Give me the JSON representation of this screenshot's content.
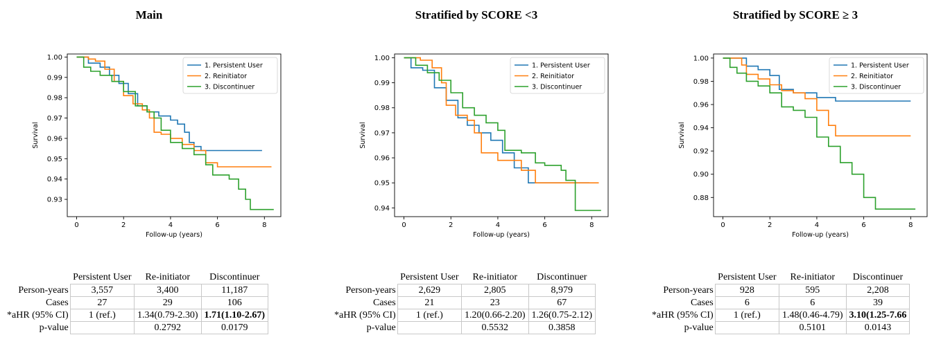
{
  "legend": [
    "1. Persistent User",
    "2. Reinitiator",
    "3. Discontinuer"
  ],
  "colors": [
    "#1f77b4",
    "#ff7f0e",
    "#2ca02c"
  ],
  "table_columns": [
    "Persistent User",
    "Re-initiator",
    "Discontinuer"
  ],
  "table_row_labels": [
    "Person-years",
    "Cases",
    "*aHR (95% CI)",
    "p-value"
  ],
  "panels": [
    {
      "title": "Main",
      "chart_data": {
        "type": "line",
        "xlabel": "Follow-up (years)",
        "ylabel": "Survival",
        "xlim": [
          -0.4,
          8.7
        ],
        "ylim": [
          0.9215,
          1.0015
        ],
        "xticks": [
          0,
          2,
          4,
          6,
          8
        ],
        "yticks": [
          0.93,
          0.94,
          0.95,
          0.96,
          0.97,
          0.98,
          0.99,
          1.0
        ],
        "legend_position": "top-right",
        "grid": false,
        "series": [
          {
            "name": "1. Persistent User",
            "x": [
              0,
              0.5,
              1,
              1.4,
              1.8,
              2.2,
              2.6,
              3.0,
              3.5,
              4.0,
              4.3,
              4.6,
              4.8,
              5.0,
              5.3,
              7.9
            ],
            "y": [
              1.0,
              0.997,
              0.995,
              0.991,
              0.987,
              0.982,
              0.976,
              0.973,
              0.971,
              0.969,
              0.967,
              0.963,
              0.958,
              0.956,
              0.954,
              0.954
            ]
          },
          {
            "name": "2. Reinitiator",
            "x": [
              0,
              0.5,
              0.8,
              1.2,
              1.6,
              2.0,
              2.4,
              2.8,
              3.1,
              3.3,
              3.6,
              4.0,
              4.5,
              5.0,
              5.5,
              6.0,
              8.3
            ],
            "y": [
              1.0,
              0.999,
              0.998,
              0.994,
              0.988,
              0.981,
              0.977,
              0.974,
              0.97,
              0.963,
              0.962,
              0.96,
              0.957,
              0.954,
              0.948,
              0.946,
              0.946
            ]
          },
          {
            "name": "3. Discontinuer",
            "x": [
              0,
              0.3,
              0.6,
              1.0,
              1.5,
              2.0,
              2.5,
              3.0,
              3.3,
              3.6,
              4.0,
              4.5,
              5.0,
              5.5,
              5.8,
              6.5,
              6.9,
              7.2,
              7.4,
              8.4
            ],
            "y": [
              1.0,
              0.995,
              0.993,
              0.991,
              0.988,
              0.983,
              0.976,
              0.973,
              0.97,
              0.964,
              0.958,
              0.955,
              0.952,
              0.947,
              0.942,
              0.94,
              0.935,
              0.93,
              0.925,
              0.925
            ]
          }
        ]
      },
      "table": [
        [
          "3,557",
          "3,400",
          "11,187"
        ],
        [
          "27",
          "29",
          "106"
        ],
        [
          "1 (ref.)",
          "1.34(0.79-2.30)",
          "1.71(1.10-2.67)"
        ],
        [
          "",
          "0.2792",
          "0.0179"
        ]
      ]
    },
    {
      "title": "Stratified by SCORE <3",
      "chart_data": {
        "type": "line",
        "xlabel": "Follow-up (years)",
        "ylabel": "Survival",
        "xlim": [
          -0.4,
          8.7
        ],
        "ylim": [
          0.9365,
          1.0015
        ],
        "xticks": [
          0,
          2,
          4,
          6,
          8
        ],
        "yticks": [
          0.94,
          0.95,
          0.96,
          0.97,
          0.98,
          0.99,
          1.0
        ],
        "legend_position": "top-right",
        "grid": false,
        "series": [
          {
            "name": "1. Persistent User",
            "x": [
              0,
              0.3,
              0.8,
              1.3,
              1.8,
              2.3,
              2.7,
              3.2,
              3.7,
              4.2,
              4.7,
              5.3,
              7.9
            ],
            "y": [
              1.0,
              0.996,
              0.995,
              0.988,
              0.983,
              0.976,
              0.973,
              0.97,
              0.967,
              0.962,
              0.956,
              0.95,
              0.95
            ]
          },
          {
            "name": "2. Reinitiator",
            "x": [
              0,
              0.7,
              1.2,
              1.6,
              1.8,
              2.2,
              2.7,
              3.0,
              3.3,
              4.0,
              5.0,
              5.6,
              8.3
            ],
            "y": [
              1.0,
              0.999,
              0.996,
              0.99,
              0.981,
              0.977,
              0.975,
              0.97,
              0.962,
              0.959,
              0.955,
              0.95,
              0.95
            ]
          },
          {
            "name": "3. Discontinuer",
            "x": [
              0,
              0.5,
              1.0,
              1.5,
              2.0,
              2.5,
              3.0,
              3.5,
              4.0,
              4.3,
              5.0,
              5.6,
              6.0,
              6.7,
              6.9,
              7.3,
              8.4
            ],
            "y": [
              1.0,
              0.997,
              0.994,
              0.991,
              0.986,
              0.98,
              0.977,
              0.974,
              0.971,
              0.963,
              0.962,
              0.958,
              0.957,
              0.955,
              0.951,
              0.939,
              0.939
            ]
          }
        ]
      },
      "table": [
        [
          "2,629",
          "2,805",
          "8,979"
        ],
        [
          "21",
          "23",
          "67"
        ],
        [
          "1 (ref.)",
          "1.20(0.66-2.20)",
          "1.26(0.75-2.12)"
        ],
        [
          "",
          "0.5532",
          "0.3858"
        ]
      ]
    },
    {
      "title": "Stratified by SCORE ≥ 3",
      "chart_data": {
        "type": "line",
        "xlabel": "Follow-up (years)",
        "ylabel": "Survival",
        "xlim": [
          -0.4,
          8.7
        ],
        "ylim": [
          0.8635,
          1.0035
        ],
        "xticks": [
          0,
          2,
          4,
          6,
          8
        ],
        "yticks": [
          0.88,
          0.9,
          0.92,
          0.94,
          0.96,
          0.98,
          1.0
        ],
        "legend_position": "top-right",
        "grid": false,
        "series": [
          {
            "name": "1. Persistent User",
            "x": [
              0,
              1.0,
              1.5,
              2.0,
              2.4,
              3.0,
              4.0,
              4.8,
              8.0
            ],
            "y": [
              1.0,
              0.993,
              0.99,
              0.985,
              0.973,
              0.97,
              0.966,
              0.963,
              0.963
            ]
          },
          {
            "name": "2. Reinitiator",
            "x": [
              0,
              0.8,
              1.0,
              1.5,
              2.0,
              2.5,
              3.0,
              3.5,
              4.0,
              4.5,
              4.8,
              8.0
            ],
            "y": [
              1.0,
              0.994,
              0.986,
              0.982,
              0.977,
              0.972,
              0.97,
              0.965,
              0.955,
              0.942,
              0.933,
              0.933
            ]
          },
          {
            "name": "3. Discontinuer",
            "x": [
              0,
              0.3,
              0.6,
              1.0,
              1.5,
              2.0,
              2.5,
              3.0,
              3.5,
              4.0,
              4.5,
              5.0,
              5.5,
              6.0,
              6.5,
              8.2
            ],
            "y": [
              1.0,
              0.992,
              0.987,
              0.98,
              0.976,
              0.97,
              0.958,
              0.955,
              0.949,
              0.932,
              0.924,
              0.91,
              0.9,
              0.88,
              0.87,
              0.87
            ]
          }
        ]
      },
      "table": [
        [
          "928",
          "595",
          "2,208"
        ],
        [
          "6",
          "6",
          "39"
        ],
        [
          "1 (ref.)",
          "1.48(0.46-4.79)",
          "3.10(1.25-7.66"
        ],
        [
          "",
          "0.5101",
          "0.0143"
        ]
      ]
    }
  ]
}
